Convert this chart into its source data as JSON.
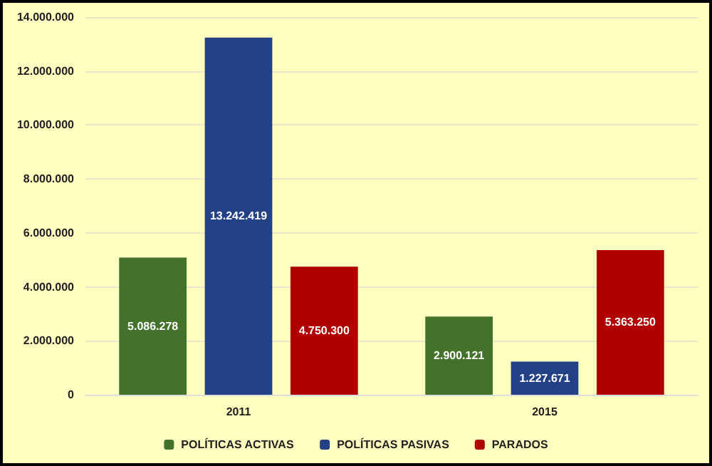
{
  "chart_data": {
    "type": "bar",
    "categories": [
      "2011",
      "2015"
    ],
    "series": [
      {
        "name": "POLÍTICAS ACTIVAS",
        "color": "#43722a",
        "values": [
          5086278,
          2900121
        ],
        "value_labels": [
          "5.086.278",
          "2.900.121"
        ]
      },
      {
        "name": "POLÍTICAS PASIVAS",
        "color": "#234185",
        "values": [
          13242419,
          1227671
        ],
        "value_labels": [
          "13.242.419",
          "1.227.671"
        ]
      },
      {
        "name": "PARADOS",
        "color": "#b00000",
        "values": [
          4750300,
          5363250
        ],
        "value_labels": [
          "4.750.300",
          "5.363.250"
        ]
      }
    ],
    "ylim": [
      0,
      14000000
    ],
    "yticks": [
      {
        "value": 0,
        "label": "0"
      },
      {
        "value": 2000000,
        "label": "2.000.000"
      },
      {
        "value": 4000000,
        "label": "4.000.000"
      },
      {
        "value": 6000000,
        "label": "6.000.000"
      },
      {
        "value": 8000000,
        "label": "8.000.000"
      },
      {
        "value": 10000000,
        "label": "10.000.000"
      },
      {
        "value": 12000000,
        "label": "12.000.000"
      },
      {
        "value": 14000000,
        "label": "14.000.000"
      }
    ],
    "grid": "y",
    "legend": "bottom"
  }
}
